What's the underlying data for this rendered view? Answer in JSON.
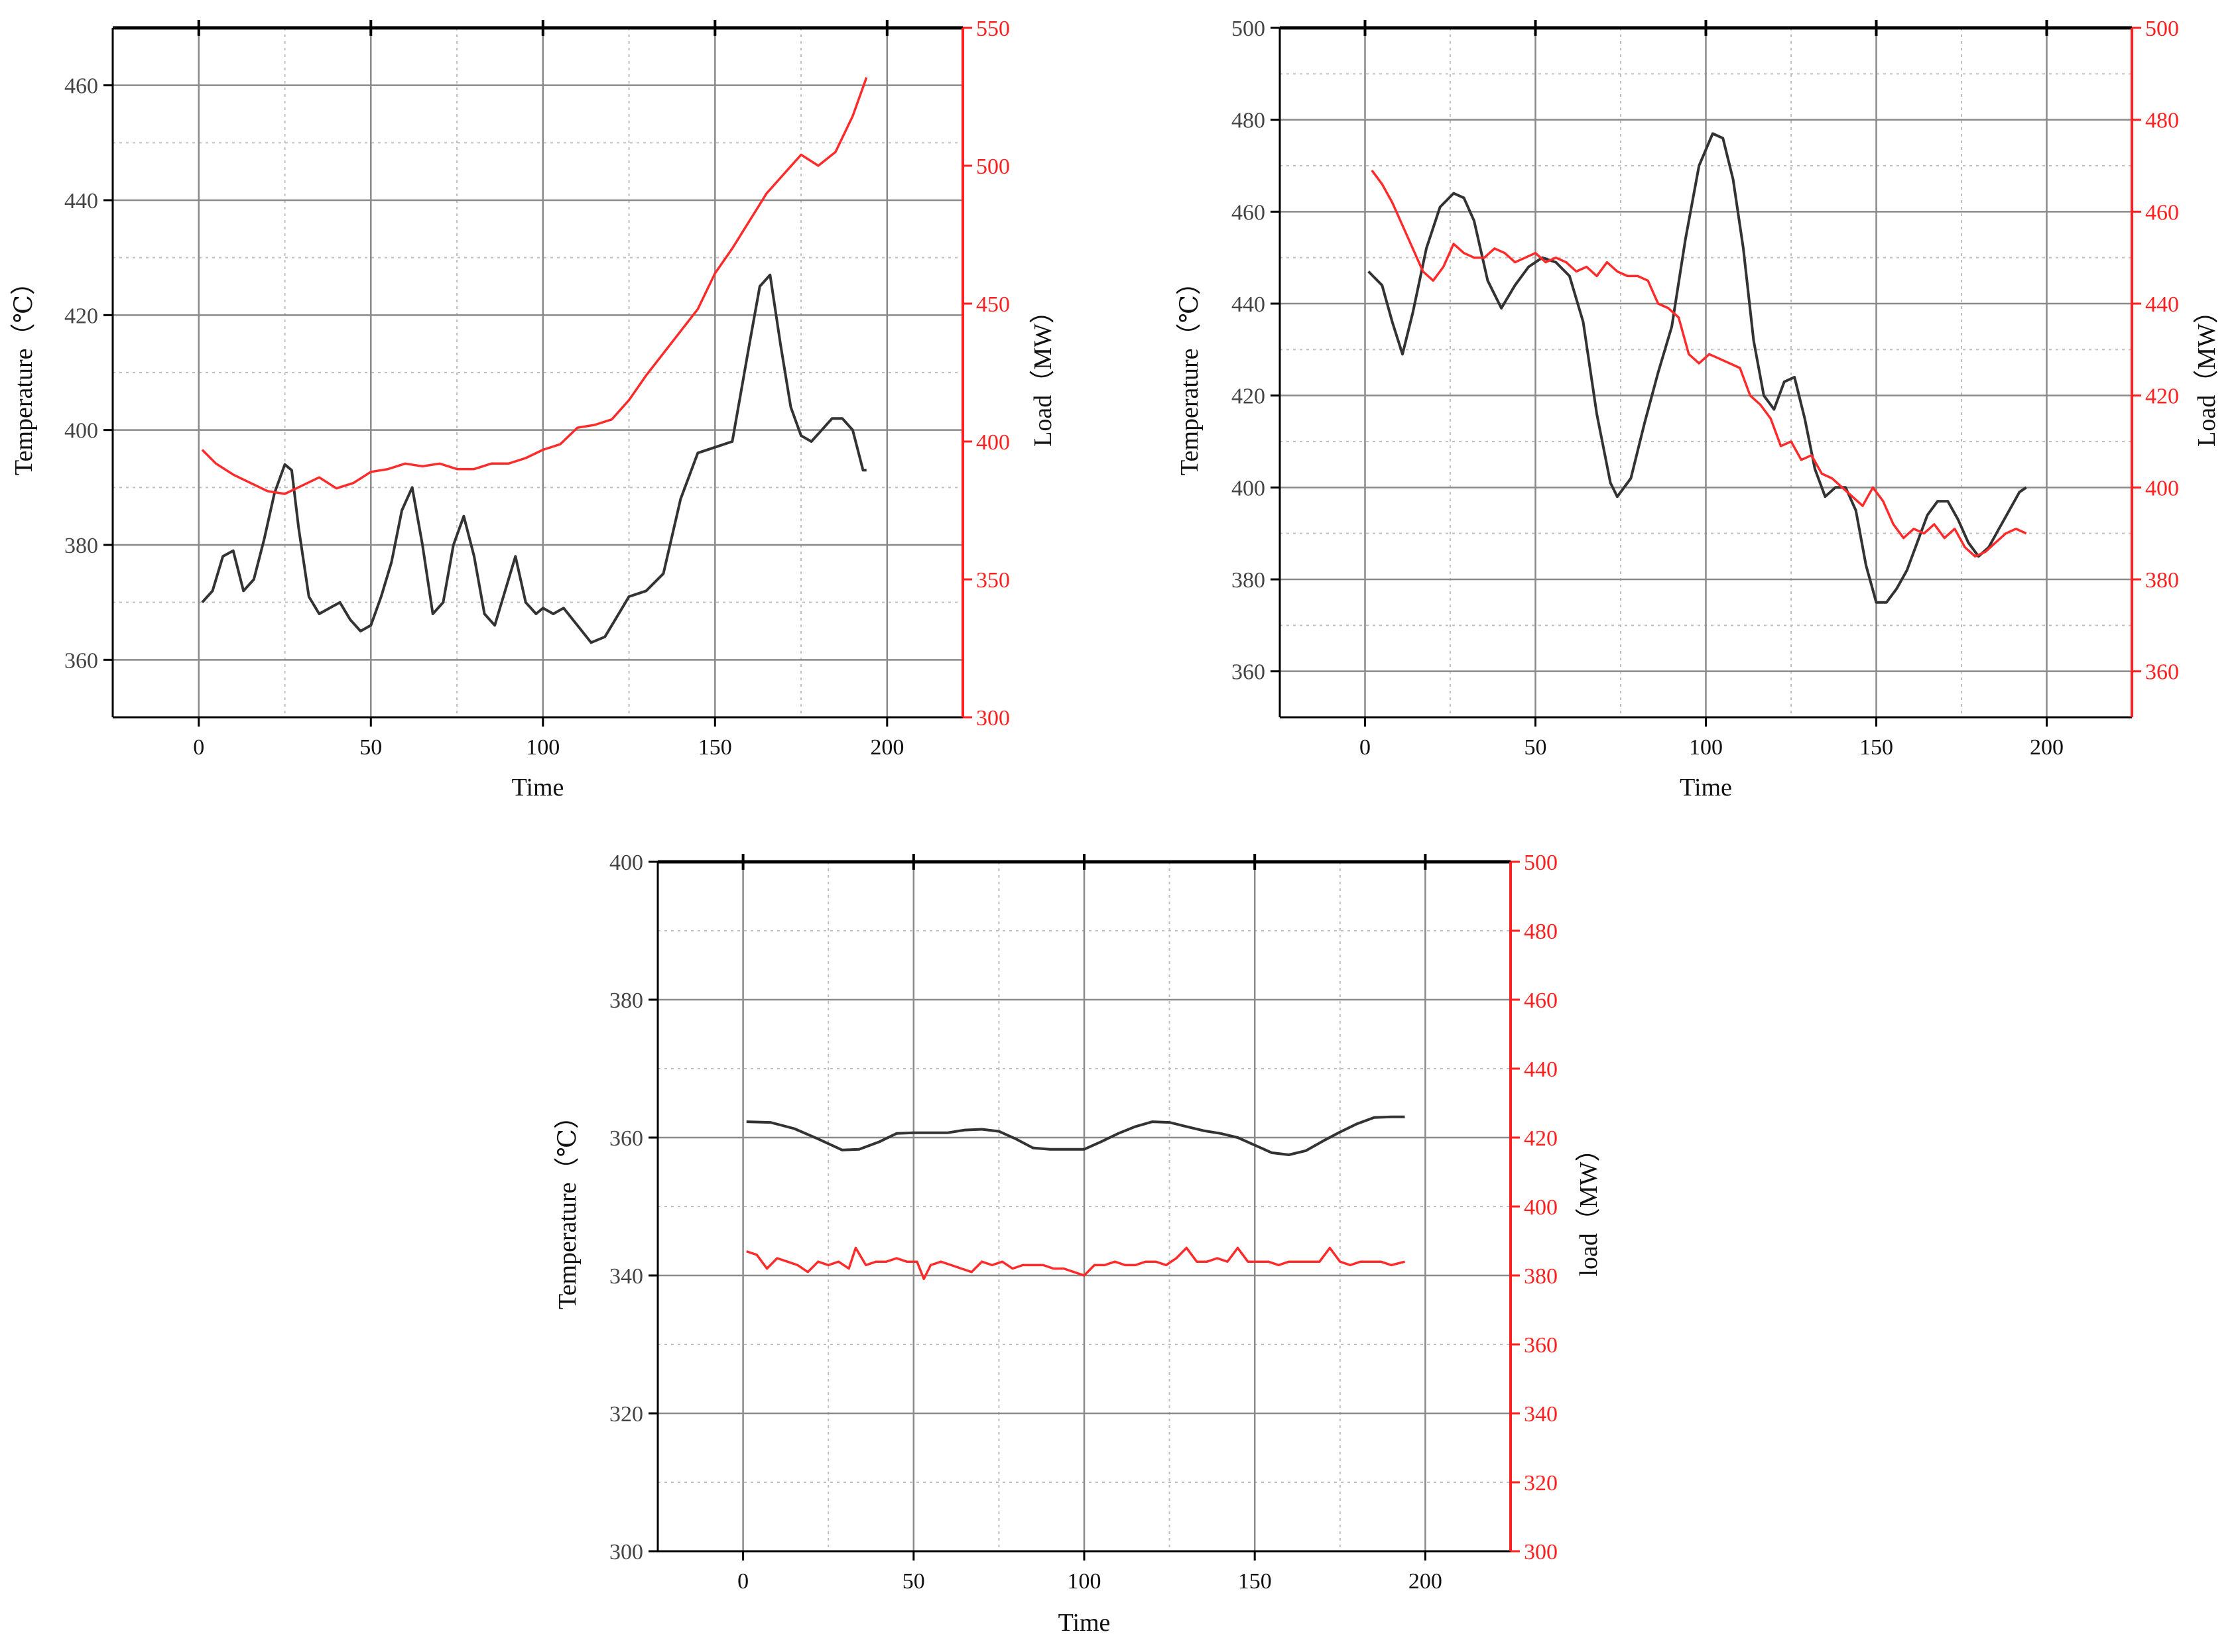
{
  "chart_data": [
    {
      "type": "line",
      "xlabel": "Time",
      "ylabel_left": "Temperature（℃）",
      "ylabel_right": "Load（MW）",
      "xlim": [
        -25,
        222
      ],
      "xticks": [
        0,
        50,
        100,
        150,
        200
      ],
      "ylim_left": [
        350,
        470
      ],
      "yticks_left": [
        360,
        380,
        400,
        420,
        440,
        460
      ],
      "ylim_right": [
        300,
        550
      ],
      "yticks_right": [
        300,
        350,
        400,
        450,
        500,
        550
      ],
      "grid": true,
      "series": [
        {
          "axis": "left",
          "color": "#333333",
          "x": [
            1,
            4,
            7,
            10,
            13,
            16,
            19,
            22,
            25,
            27,
            29,
            32,
            35,
            38,
            41,
            44,
            47,
            50,
            53,
            56,
            59,
            62,
            65,
            68,
            71,
            74,
            77,
            80,
            83,
            86,
            89,
            92,
            95,
            98,
            100,
            103,
            106,
            110,
            114,
            118,
            121,
            125,
            130,
            135,
            140,
            145,
            150,
            155,
            160,
            163,
            166,
            169,
            172,
            175,
            178,
            181,
            184,
            187,
            190,
            193,
            194
          ],
          "y": [
            370,
            372,
            378,
            379,
            372,
            374,
            381,
            389,
            394,
            393,
            383,
            371,
            368,
            369,
            370,
            367,
            365,
            366,
            371,
            377,
            386,
            390,
            380,
            368,
            370,
            380,
            385,
            378,
            368,
            366,
            372,
            378,
            370,
            368,
            369,
            368,
            369,
            366,
            363,
            364,
            367,
            371,
            372,
            375,
            388,
            396,
            397,
            398,
            415,
            425,
            427,
            415,
            404,
            399,
            398,
            400,
            402,
            402,
            400,
            393,
            393
          ]
        },
        {
          "axis": "right",
          "color": "#ff2a2a",
          "x": [
            1,
            5,
            10,
            15,
            20,
            25,
            30,
            35,
            40,
            45,
            50,
            55,
            60,
            65,
            70,
            75,
            80,
            85,
            90,
            95,
            100,
            105,
            110,
            115,
            120,
            125,
            130,
            135,
            140,
            145,
            150,
            155,
            160,
            165,
            170,
            175,
            180,
            185,
            190,
            194
          ],
          "y": [
            397,
            392,
            388,
            385,
            382,
            381,
            384,
            387,
            383,
            385,
            389,
            390,
            392,
            391,
            392,
            390,
            390,
            392,
            392,
            394,
            397,
            399,
            405,
            406,
            408,
            415,
            424,
            432,
            440,
            448,
            461,
            470,
            480,
            490,
            497,
            504,
            500,
            505,
            518,
            532
          ]
        }
      ]
    },
    {
      "type": "line",
      "xlabel": "Time",
      "ylabel_left": "Temperature（℃）",
      "ylabel_right": "Load（MW）",
      "xlim": [
        -25,
        225
      ],
      "xticks": [
        0,
        50,
        100,
        150,
        200
      ],
      "ylim_left": [
        350,
        500
      ],
      "yticks_left": [
        360,
        380,
        400,
        420,
        440,
        460,
        480,
        500
      ],
      "ylim_right": [
        350,
        500
      ],
      "yticks_right": [
        360,
        380,
        400,
        420,
        440,
        460,
        480,
        500
      ],
      "grid": true,
      "series": [
        {
          "axis": "left",
          "color": "#333333",
          "x": [
            1,
            5,
            8,
            11,
            14,
            18,
            22,
            26,
            29,
            32,
            36,
            40,
            44,
            48,
            52,
            56,
            60,
            64,
            68,
            72,
            74,
            78,
            82,
            86,
            90,
            94,
            98,
            102,
            105,
            108,
            111,
            114,
            117,
            120,
            123,
            126,
            129,
            132,
            135,
            138,
            141,
            144,
            147,
            150,
            153,
            156,
            159,
            162,
            165,
            168,
            171,
            174,
            177,
            180,
            183,
            186,
            189,
            192,
            194
          ],
          "y": [
            447,
            444,
            436,
            429,
            438,
            452,
            461,
            464,
            463,
            458,
            445,
            439,
            444,
            448,
            450,
            449,
            446,
            436,
            416,
            401,
            398,
            402,
            414,
            425,
            435,
            454,
            470,
            477,
            476,
            467,
            452,
            432,
            420,
            417,
            423,
            424,
            415,
            404,
            398,
            400,
            400,
            395,
            383,
            375,
            375,
            378,
            382,
            388,
            394,
            397,
            397,
            393,
            388,
            385,
            387,
            391,
            395,
            399,
            400
          ]
        },
        {
          "axis": "right",
          "color": "#ff2a2a",
          "x": [
            2,
            5,
            8,
            11,
            14,
            17,
            20,
            23,
            26,
            29,
            32,
            35,
            38,
            41,
            44,
            47,
            50,
            53,
            56,
            59,
            62,
            65,
            68,
            71,
            74,
            77,
            80,
            83,
            86,
            89,
            92,
            95,
            98,
            101,
            104,
            107,
            110,
            113,
            116,
            119,
            122,
            125,
            128,
            131,
            134,
            137,
            140,
            143,
            146,
            149,
            152,
            155,
            158,
            161,
            164,
            167,
            170,
            173,
            176,
            179,
            182,
            185,
            188,
            191,
            194
          ],
          "y": [
            469,
            466,
            462,
            457,
            452,
            447,
            445,
            448,
            453,
            451,
            450,
            450,
            452,
            451,
            449,
            450,
            451,
            449,
            450,
            449,
            447,
            448,
            446,
            449,
            447,
            446,
            446,
            445,
            440,
            439,
            437,
            429,
            427,
            429,
            428,
            427,
            426,
            420,
            418,
            415,
            409,
            410,
            406,
            407,
            403,
            402,
            400,
            398,
            396,
            400,
            397,
            392,
            389,
            391,
            390,
            392,
            389,
            391,
            387,
            385,
            386,
            388,
            390,
            391,
            390
          ]
        }
      ]
    },
    {
      "type": "line",
      "xlabel": "Time",
      "ylabel_left": "Temperature（℃）",
      "ylabel_right": "load（MW）",
      "xlim": [
        -25,
        225
      ],
      "xticks": [
        0,
        50,
        100,
        150,
        200
      ],
      "ylim_left": [
        300,
        400
      ],
      "yticks_left": [
        300,
        320,
        340,
        360,
        380,
        400
      ],
      "ylim_right": [
        300,
        500
      ],
      "yticks_right": [
        300,
        320,
        340,
        360,
        380,
        400,
        420,
        440,
        460,
        480,
        500
      ],
      "grid": true,
      "series": [
        {
          "axis": "left",
          "color": "#333333",
          "x": [
            1,
            8,
            15,
            22,
            29,
            34,
            40,
            45,
            50,
            55,
            60,
            65,
            70,
            75,
            80,
            85,
            90,
            95,
            100,
            105,
            110,
            115,
            120,
            125,
            130,
            135,
            140,
            145,
            150,
            155,
            160,
            165,
            170,
            175,
            180,
            185,
            190,
            194
          ],
          "y": [
            362.3,
            362.2,
            361.3,
            359.8,
            358.2,
            358.3,
            359.4,
            360.6,
            360.7,
            360.7,
            360.7,
            361.1,
            361.2,
            360.9,
            359.8,
            358.5,
            358.3,
            358.3,
            358.3,
            359.4,
            360.6,
            361.6,
            362.3,
            362.2,
            361.6,
            361.0,
            360.6,
            360.0,
            358.9,
            357.8,
            357.5,
            358.1,
            359.5,
            360.8,
            362.0,
            362.9,
            363.0,
            363.0
          ]
        },
        {
          "axis": "right",
          "color": "#ff2a2a",
          "x": [
            1,
            4,
            7,
            10,
            13,
            16,
            19,
            22,
            25,
            28,
            31,
            33,
            36,
            39,
            42,
            45,
            48,
            51,
            53,
            55,
            58,
            61,
            64,
            67,
            70,
            73,
            76,
            79,
            82,
            85,
            88,
            91,
            94,
            97,
            100,
            103,
            106,
            109,
            112,
            115,
            118,
            121,
            124,
            127,
            130,
            133,
            136,
            139,
            142,
            145,
            148,
            151,
            154,
            157,
            160,
            163,
            166,
            169,
            172,
            175,
            178,
            181,
            184,
            187,
            190,
            194
          ],
          "y": [
            387,
            386,
            382,
            385,
            384,
            383,
            381,
            384,
            383,
            384,
            382,
            388,
            383,
            384,
            384,
            385,
            384,
            384,
            379,
            383,
            384,
            383,
            382,
            381,
            384,
            383,
            384,
            382,
            383,
            383,
            383,
            382,
            382,
            381,
            380,
            383,
            383,
            384,
            383,
            383,
            384,
            384,
            383,
            385,
            388,
            384,
            384,
            385,
            384,
            388,
            384,
            384,
            384,
            383,
            384,
            384,
            384,
            384,
            388,
            384,
            383,
            384,
            384,
            384,
            383,
            384
          ]
        }
      ]
    }
  ]
}
